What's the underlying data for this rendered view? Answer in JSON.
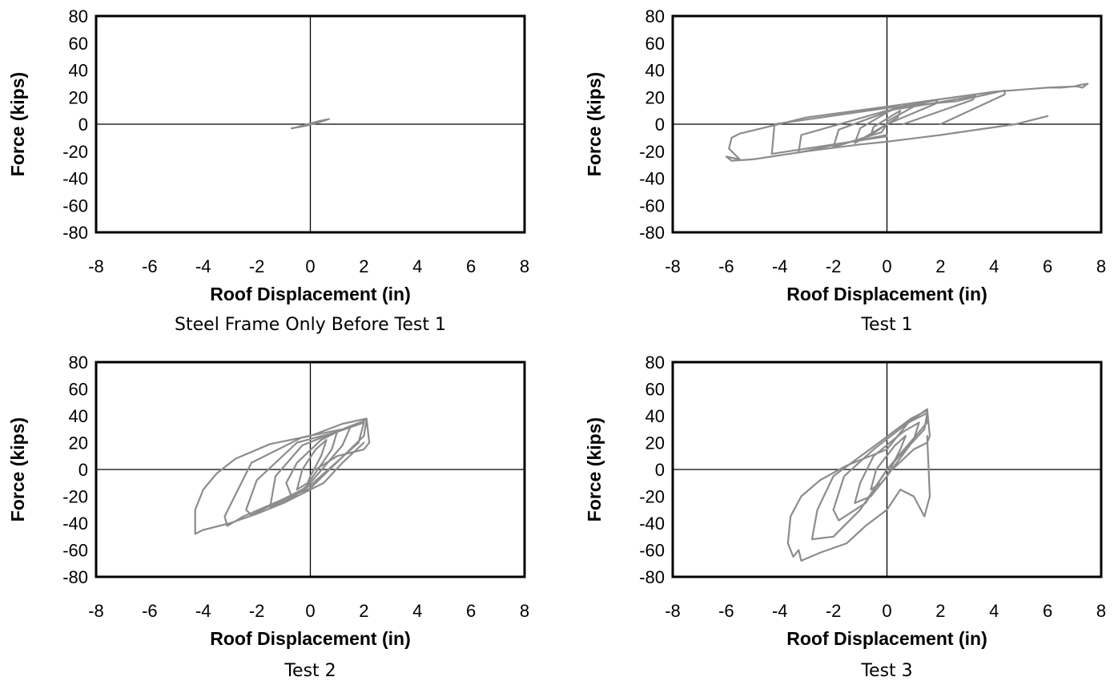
{
  "chart_data": [
    {
      "type": "line",
      "title": "Steel Frame Only Before Test 1",
      "xlabel": "Roof Displacement (in)",
      "ylabel": "Force (kips)",
      "xlim": [
        -8,
        8
      ],
      "ylim": [
        -80,
        80
      ],
      "xticks": [
        "-8",
        "-6",
        "-4",
        "-2",
        "0",
        "2",
        "4",
        "6",
        "8"
      ],
      "yticks": [
        "80",
        "60",
        "40",
        "20",
        "0",
        "-20",
        "-40",
        "-60",
        "-80"
      ],
      "grid": false,
      "series": [
        {
          "x": [
            -0.7,
            -0.3,
            0,
            0.3,
            0.7,
            0.3,
            0,
            -0.3,
            -0.7
          ],
          "y": [
            -3,
            -1.7,
            -0.3,
            1.2,
            3.8,
            2.2,
            0.6,
            -1.2,
            -3.2
          ]
        }
      ]
    },
    {
      "type": "line",
      "title": "Test 1",
      "xlabel": "Roof Displacement (in)",
      "ylabel": "Force (kips)",
      "xlim": [
        -8,
        8
      ],
      "ylim": [
        -80,
        80
      ],
      "xticks": [
        "-8",
        "-6",
        "-4",
        "-2",
        "0",
        "2",
        "4",
        "6",
        "8"
      ],
      "yticks": [
        "80",
        "60",
        "40",
        "20",
        "0",
        "-20",
        "-40",
        "-60",
        "-80"
      ],
      "grid": false,
      "series": [
        {
          "x": [
            0,
            0.4,
            0.5,
            -0.5,
            -0.6,
            0
          ],
          "y": [
            0,
            5,
            10,
            -2,
            -8,
            0
          ]
        },
        {
          "x": [
            0,
            1.0,
            1.1,
            0.2,
            -1.0,
            -1.2,
            0
          ],
          "y": [
            2,
            13,
            16,
            11,
            -3,
            -14,
            0
          ]
        },
        {
          "x": [
            0,
            1.8,
            1.9,
            0.4,
            -1.8,
            -2.0,
            -0.2,
            0
          ],
          "y": [
            0,
            15,
            18,
            12,
            -4,
            -17,
            -6,
            0
          ]
        },
        {
          "x": [
            0.6,
            3.2,
            3.3,
            1.6,
            0,
            -3.2,
            -3.3,
            -1.6,
            0
          ],
          "y": [
            0,
            18,
            21,
            15,
            10,
            -8,
            -21,
            -14,
            -8
          ]
        },
        {
          "x": [
            2.0,
            4.4,
            4.4,
            2.6,
            0,
            -4.2,
            -4.3,
            -2.0,
            0
          ],
          "y": [
            0,
            22,
            25,
            17,
            12,
            0,
            -22,
            -15,
            -9
          ]
        },
        {
          "x": [
            6.0,
            6.5,
            7.0,
            7.2,
            7.5,
            7.3,
            7.1,
            6.0,
            4.0,
            0,
            -3.0,
            -5.5,
            -5.8,
            -5.9,
            -5.5,
            -6.0,
            -5.8,
            -5.0,
            -3.0,
            -1.0,
            0,
            2.0,
            4.8,
            6.0
          ],
          "y": [
            27,
            27,
            28,
            29,
            30,
            27,
            28,
            27,
            24,
            13,
            5,
            -7,
            -10,
            -18,
            -26,
            -24,
            -27,
            -26,
            -20,
            -15,
            -13,
            -8,
            0,
            6
          ]
        }
      ]
    },
    {
      "type": "line",
      "title": "Test 2",
      "xlabel": "Roof Displacement (in)",
      "ylabel": "Force (kips)",
      "xlim": [
        -8,
        8
      ],
      "ylim": [
        -80,
        80
      ],
      "xticks": [
        "-8",
        "-6",
        "-4",
        "-2",
        "0",
        "2",
        "4",
        "6",
        "8"
      ],
      "yticks": [
        "80",
        "60",
        "40",
        "20",
        "0",
        "-20",
        "-40",
        "-60",
        "-80"
      ],
      "grid": false,
      "series": [
        {
          "x": [
            0,
            0.4,
            0.6,
            0.2,
            -0.3,
            -0.5,
            -0.1,
            0
          ],
          "y": [
            -5,
            10,
            22,
            15,
            0,
            -15,
            -10,
            -5
          ]
        },
        {
          "x": [
            0,
            0.8,
            1.0,
            0.4,
            -0.5,
            -0.9,
            -0.7,
            -0.2,
            0
          ],
          "y": [
            -8,
            15,
            28,
            22,
            5,
            -10,
            -20,
            -15,
            -8
          ]
        },
        {
          "x": [
            0,
            1.2,
            1.5,
            0.7,
            -0.3,
            -1.3,
            -1.5,
            -0.6,
            0
          ],
          "y": [
            -10,
            18,
            32,
            26,
            18,
            -5,
            -28,
            -20,
            -10
          ]
        },
        {
          "x": [
            0,
            1.8,
            2.0,
            1.0,
            -0.5,
            -2.0,
            -2.4,
            -2.2,
            -0.8,
            0
          ],
          "y": [
            -12,
            20,
            35,
            28,
            20,
            -8,
            -30,
            -34,
            -20,
            -12
          ]
        },
        {
          "x": [
            0,
            2.0,
            2.1,
            1.2,
            -0.3,
            -2.2,
            -3.2,
            -3.1,
            -2.5,
            -1.0,
            0
          ],
          "y": [
            -14,
            25,
            37,
            30,
            24,
            5,
            -35,
            -42,
            -35,
            -22,
            -14
          ]
        },
        {
          "x": [
            0.2,
            1.0,
            2.0,
            2.2,
            2.1,
            1.2,
            0,
            -1.5,
            -2.8,
            -3.5,
            -4.0,
            -4.3,
            -4.3,
            -4.0,
            -3.0,
            -2.0,
            -1.0,
            0,
            0.5,
            1.2,
            2.0
          ],
          "y": [
            0,
            10,
            15,
            20,
            38,
            34,
            25,
            19,
            8,
            -3,
            -15,
            -30,
            -48,
            -45,
            -40,
            -33,
            -25,
            -15,
            -10,
            5,
            20
          ]
        }
      ]
    },
    {
      "type": "line",
      "title": "Test 3",
      "xlabel": "Roof Displacement (in)",
      "ylabel": "Force (kips)",
      "xlim": [
        -8,
        8
      ],
      "ylim": [
        -80,
        80
      ],
      "xticks": [
        "-8",
        "-6",
        "-4",
        "-2",
        "0",
        "2",
        "4",
        "6",
        "8"
      ],
      "yticks": [
        "80",
        "60",
        "40",
        "20",
        "0",
        "-20",
        "-40",
        "-60",
        "-80"
      ],
      "grid": false,
      "series": [
        {
          "x": [
            0,
            0.5,
            0.7,
            0.3,
            -0.4,
            -0.6,
            -0.2,
            0
          ],
          "y": [
            -5,
            15,
            25,
            18,
            0,
            -15,
            -10,
            -5
          ]
        },
        {
          "x": [
            0,
            1.0,
            1.2,
            0.6,
            -0.5,
            -1.0,
            -1.2,
            -0.6,
            0
          ],
          "y": [
            -5,
            22,
            35,
            28,
            10,
            -10,
            -25,
            -20,
            -5
          ]
        },
        {
          "x": [
            0,
            1.4,
            1.5,
            0.8,
            -0.5,
            -1.6,
            -2.0,
            -1.8,
            -0.8,
            0
          ],
          "y": [
            0,
            30,
            42,
            35,
            15,
            -5,
            -30,
            -38,
            -25,
            0
          ]
        },
        {
          "x": [
            0,
            1.5,
            1.5,
            0.9,
            -0.3,
            -2.0,
            -2.6,
            -2.8,
            -2.0,
            -1.0,
            0
          ],
          "y": [
            0,
            35,
            44,
            38,
            20,
            -5,
            -30,
            -52,
            -50,
            -30,
            0
          ]
        },
        {
          "x": [
            0.2,
            1.0,
            1.5,
            1.6,
            1.5,
            0.8,
            0,
            -1.5,
            -2.5,
            -3.2,
            -3.6,
            -3.7,
            -3.5,
            -3.3,
            -3.2,
            -2.5,
            -1.5,
            -0.8,
            0,
            0.5,
            1.0,
            1.4,
            1.6,
            1.5
          ],
          "y": [
            0,
            15,
            20,
            25,
            45,
            35,
            15,
            3,
            -8,
            -20,
            -35,
            -55,
            -65,
            -60,
            -68,
            -62,
            -55,
            -42,
            -30,
            -15,
            -20,
            -35,
            -20,
            25
          ]
        }
      ]
    }
  ]
}
